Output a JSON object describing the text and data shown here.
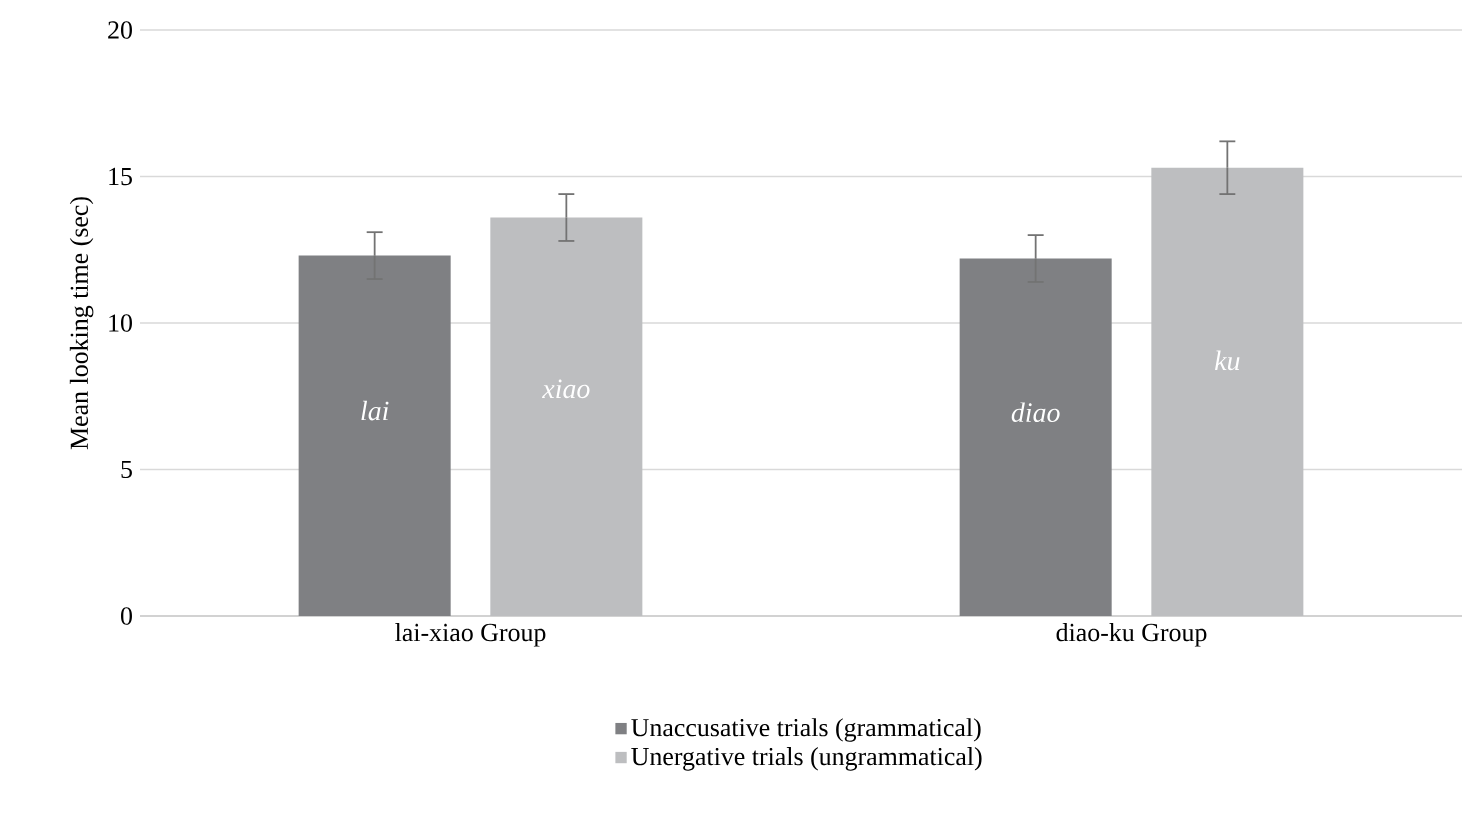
{
  "chart_data": {
    "type": "bar",
    "ylabel": "Mean looking time (sec)",
    "categories": [
      "lai-xiao Group",
      "diao-ku Group"
    ],
    "series": [
      {
        "name": "Unaccusative trials (grammatical)",
        "color": "#7f8083",
        "values": [
          12.3,
          12.2
        ],
        "errors": [
          0.8,
          0.8
        ]
      },
      {
        "name": "Unergative trials (ungrammatical)",
        "color": "#bdbec0",
        "values": [
          13.6,
          15.3
        ],
        "errors": [
          0.8,
          0.9
        ]
      }
    ],
    "ylim": [
      0,
      20
    ],
    "yticks": [
      0,
      5,
      10,
      15,
      20
    ],
    "grid": "y",
    "legend": "bottom",
    "annotations": [
      "lai",
      "xiao",
      "diao",
      "ku"
    ]
  }
}
